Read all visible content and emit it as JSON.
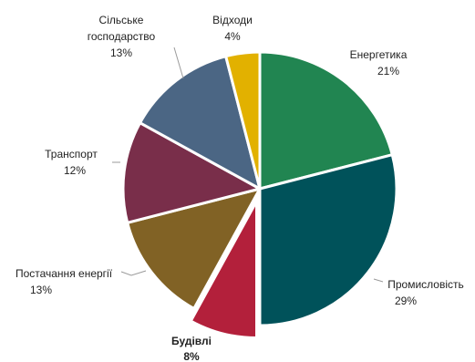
{
  "chart_data": {
    "type": "pie",
    "title": "",
    "slices": [
      {
        "name": "Енергетика",
        "value": 21,
        "label": "21%",
        "color": "#218551"
      },
      {
        "name": "Промисловість",
        "value": 29,
        "label": "29%",
        "color": "#00525A"
      },
      {
        "name": "Будівлі",
        "value": 8,
        "label": "8%",
        "color": "#B3203B",
        "exploded": true,
        "bold": true
      },
      {
        "name": "Постачання енергії",
        "value": 13,
        "label": "13%",
        "color": "#816225"
      },
      {
        "name": "Транспорт",
        "value": 12,
        "label": "12%",
        "color": "#792E4A"
      },
      {
        "name": "Сільське господарство",
        "value": 13,
        "label": "13%",
        "color": "#4B6684"
      },
      {
        "name": "Відходи",
        "value": 4,
        "label": "4%",
        "color": "#E2B100"
      }
    ],
    "legend": "none"
  }
}
